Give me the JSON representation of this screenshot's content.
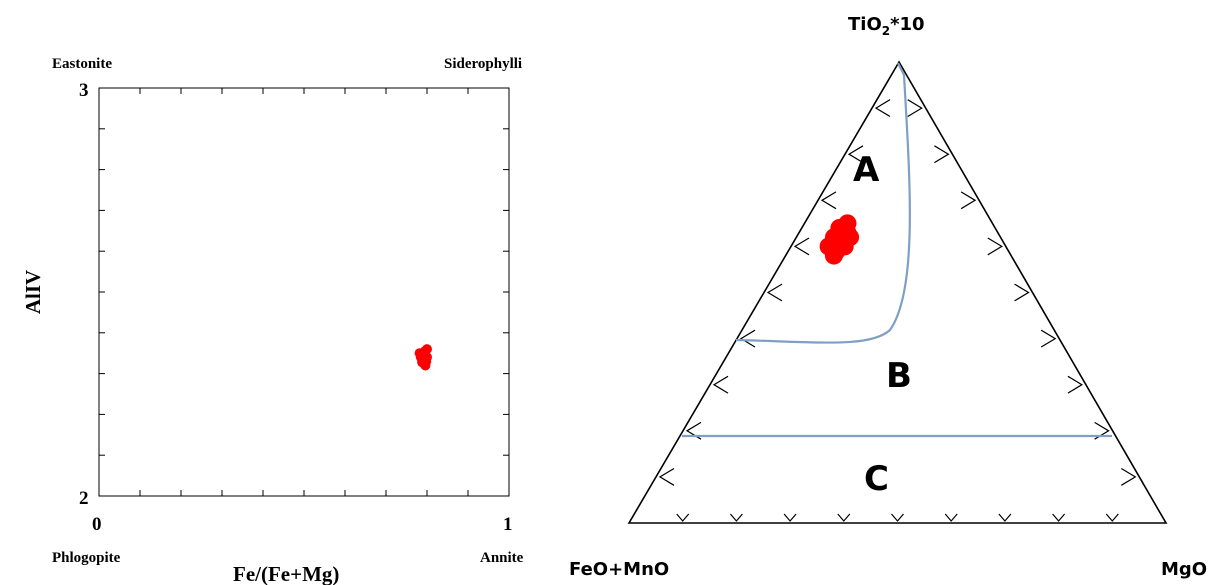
{
  "chart_data": [
    {
      "type": "scatter",
      "xlabel": "Fe/(Fe+Mg)",
      "ylabel": "AlIV",
      "xlim": [
        0,
        1
      ],
      "ylim": [
        2,
        3
      ],
      "x_ticks": [
        "0",
        "1"
      ],
      "y_ticks": [
        "2",
        "3"
      ],
      "corner_labels": {
        "top_left": "Eastonite",
        "top_right": "Siderophylli",
        "bottom_left": "Phlogopite",
        "bottom_right": "Annite"
      },
      "marker_color": "#ff0000",
      "series": [
        {
          "x": [
            0.795,
            0.79,
            0.8,
            0.785,
            0.792,
            0.798,
            0.788,
            0.796,
            0.782,
            0.8
          ],
          "y": [
            2.355,
            2.345,
            2.34,
            2.34,
            2.335,
            2.33,
            2.328,
            2.32,
            2.35,
            2.36
          ]
        }
      ]
    },
    {
      "type": "ternary",
      "apex_labels": {
        "top": "TiO2*10",
        "top_sub": "2",
        "bottom_left": "FeO+MnO",
        "bottom_right": "MgO"
      },
      "fields": [
        "A",
        "B",
        "C"
      ],
      "field_boundary_color": "#7f9fc4",
      "marker_color": "#ff0000",
      "points": [
        {
          "TiO2_10": 0.6,
          "FeOMnO": 0.33,
          "MgO": 0.07
        },
        {
          "TiO2_10": 0.62,
          "FeOMnO": 0.31,
          "MgO": 0.07
        },
        {
          "TiO2_10": 0.64,
          "FeOMnO": 0.29,
          "MgO": 0.07
        },
        {
          "TiO2_10": 0.59,
          "FeOMnO": 0.32,
          "MgO": 0.09
        },
        {
          "TiO2_10": 0.61,
          "FeOMnO": 0.3,
          "MgO": 0.09
        },
        {
          "TiO2_10": 0.63,
          "FeOMnO": 0.28,
          "MgO": 0.09
        },
        {
          "TiO2_10": 0.6,
          "FeOMnO": 0.3,
          "MgO": 0.1
        },
        {
          "TiO2_10": 0.62,
          "FeOMnO": 0.28,
          "MgO": 0.1
        },
        {
          "TiO2_10": 0.58,
          "FeOMnO": 0.33,
          "MgO": 0.09
        },
        {
          "TiO2_10": 0.65,
          "FeOMnO": 0.27,
          "MgO": 0.08
        }
      ]
    }
  ]
}
